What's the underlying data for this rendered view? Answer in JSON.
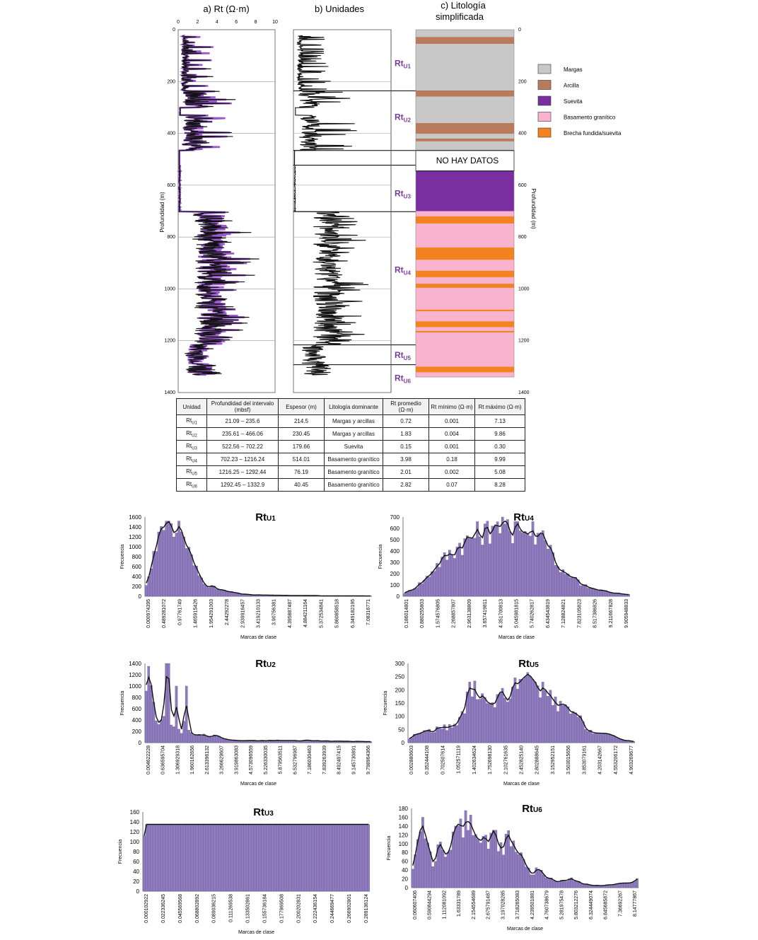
{
  "log_panel": {
    "titles": {
      "a": "a) Rt (Ω·m)",
      "b": "b) Unidades",
      "c1": "c) Litología",
      "c2": "simplificada"
    },
    "ylabel_left": "Profundidad (m)",
    "ylabel_right": "Profundidad (m)",
    "depth_ticks": [
      "0",
      "200",
      "400",
      "600",
      "800",
      "1000",
      "1200",
      "1400"
    ],
    "rt_ticks": [
      "0",
      "2",
      "4",
      "6",
      "8",
      "10"
    ],
    "unit_labels": [
      {
        "base": "Rt",
        "sub": "U1",
        "depth": 140
      },
      {
        "base": "Rt",
        "sub": "U2",
        "depth": 348
      },
      {
        "base": "Rt",
        "sub": "U3",
        "depth": 643
      },
      {
        "base": "Rt",
        "sub": "U4",
        "depth": 938
      },
      {
        "base": "Rt",
        "sub": "U5",
        "depth": 1266
      },
      {
        "base": "Rt",
        "sub": "U6",
        "depth": 1355
      }
    ],
    "unit_boundaries": [
      235.6,
      466.1,
      522.6,
      702.2,
      1216.2,
      1292.4
    ],
    "no_data_label": "NO HAY DATOS",
    "no_data_range": [
      466.1,
      545
    ],
    "lithology": [
      {
        "from": 0,
        "to": 28,
        "type": "margas"
      },
      {
        "from": 28,
        "to": 55,
        "type": "arcilla"
      },
      {
        "from": 55,
        "to": 235,
        "type": "margas"
      },
      {
        "from": 235,
        "to": 258,
        "type": "arcilla"
      },
      {
        "from": 258,
        "to": 360,
        "type": "margas"
      },
      {
        "from": 360,
        "to": 402,
        "type": "arcilla"
      },
      {
        "from": 402,
        "to": 420,
        "type": "margas"
      },
      {
        "from": 420,
        "to": 431,
        "type": "arcilla"
      },
      {
        "from": 431,
        "to": 466,
        "type": "margas"
      },
      {
        "from": 545,
        "to": 700,
        "type": "suevita"
      },
      {
        "from": 700,
        "to": 720,
        "type": "basamento"
      },
      {
        "from": 720,
        "to": 748,
        "type": "brecha"
      },
      {
        "from": 748,
        "to": 840,
        "type": "basamento"
      },
      {
        "from": 840,
        "to": 888,
        "type": "brecha"
      },
      {
        "from": 888,
        "to": 930,
        "type": "basamento"
      },
      {
        "from": 930,
        "to": 955,
        "type": "brecha"
      },
      {
        "from": 955,
        "to": 980,
        "type": "basamento"
      },
      {
        "from": 980,
        "to": 996,
        "type": "brecha"
      },
      {
        "from": 996,
        "to": 1080,
        "type": "basamento"
      },
      {
        "from": 1080,
        "to": 1087,
        "type": "brecha"
      },
      {
        "from": 1087,
        "to": 1125,
        "type": "basamento"
      },
      {
        "from": 1125,
        "to": 1148,
        "type": "brecha"
      },
      {
        "from": 1148,
        "to": 1162,
        "type": "basamento"
      },
      {
        "from": 1162,
        "to": 1168,
        "type": "brecha"
      },
      {
        "from": 1168,
        "to": 1300,
        "type": "basamento"
      },
      {
        "from": 1300,
        "to": 1322,
        "type": "brecha"
      },
      {
        "from": 1322,
        "to": 1340,
        "type": "basamento"
      }
    ],
    "legend": [
      {
        "key": "margas",
        "label": "Margas",
        "color": "#c8c8c8"
      },
      {
        "key": "arcilla",
        "label": "Arcilla",
        "color": "#b87c5c"
      },
      {
        "key": "suevita",
        "label": "Suevita",
        "color": "#7a2fa0"
      },
      {
        "key": "basamento",
        "label": "Basamento granítico",
        "color": "#f9b3cf"
      },
      {
        "key": "brecha",
        "label": "Brecha fundida/suevita",
        "color": "#f58220"
      }
    ]
  },
  "table": {
    "headers": [
      "Unidad",
      "Profundidad  del intervalo (mbsf)",
      "Espesor (m)",
      "Litología dominante",
      "Rt promedio (Ω·m)",
      "Rt mínimo (Ω·m)",
      "Rt máximo (Ω·m)"
    ],
    "rows": [
      {
        "unit": "Rt",
        "sub": "U1",
        "interval": "21.09 – 235.6",
        "thick": "214.5",
        "lith": "Margas y arcillas",
        "avg": "0.72",
        "min": "0.001",
        "max": "7.13"
      },
      {
        "unit": "Rt",
        "sub": "U2",
        "interval": "235.61 – 466.06",
        "thick": "230.45",
        "lith": "Margas y arcillas",
        "avg": "1.83",
        "min": "0.004",
        "max": "9.86"
      },
      {
        "unit": "Rt",
        "sub": "U3",
        "interval": "522.56 – 702.22",
        "thick": "179.66",
        "lith": "Suevita",
        "avg": "0.15",
        "min": "0.001",
        "max": "0.30"
      },
      {
        "unit": "Rt",
        "sub": "U4",
        "interval": "702.23 – 1216.24",
        "thick": "514.01",
        "lith": "Basamento granítico",
        "avg": "3.98",
        "min": "0.18",
        "max": "9.99"
      },
      {
        "unit": "Rt",
        "sub": "U5",
        "interval": "1216.25 – 1292.44",
        "thick": "76.19",
        "lith": "Basamento granítico",
        "avg": "2.01",
        "min": "0.002",
        "max": "5.08"
      },
      {
        "unit": "Rt",
        "sub": "U6",
        "interval": "1292.45 – 1332.9",
        "thick": "40.45",
        "lith": "Basamento granítico",
        "avg": "2.82",
        "min": "0.07",
        "max": "8.28"
      }
    ]
  },
  "chart_data": [
    {
      "type": "bar",
      "title": "Rt",
      "title_sub": "U1",
      "xlabel": "Marcas de clase",
      "ylabel": "Frecuencia",
      "ylim": [
        0,
        1600
      ],
      "yticks": [
        "0",
        "200",
        "400",
        "600",
        "800",
        "1000",
        "1200",
        "1400",
        "1600"
      ],
      "xticks": [
        "0.000974395",
        "0.489281072",
        "0.97761749",
        "1.465915426",
        "1.954291003",
        "2.44292278",
        "2.939916457",
        "3.419210133",
        "3.90756381",
        "4.395887487",
        "4.884211164",
        "5.372534841",
        "5.860858518",
        "6.349182195",
        "7.08316771"
      ],
      "profile": [
        [
          0,
          150
        ],
        [
          0.02,
          420
        ],
        [
          0.04,
          980
        ],
        [
          0.07,
          1250
        ],
        [
          0.1,
          1350
        ],
        [
          0.13,
          1420
        ],
        [
          0.16,
          1360
        ],
        [
          0.18,
          1100
        ],
        [
          0.21,
          700
        ],
        [
          0.24,
          420
        ],
        [
          0.27,
          260
        ],
        [
          0.3,
          180
        ],
        [
          0.34,
          120
        ],
        [
          0.38,
          80
        ],
        [
          0.42,
          55
        ],
        [
          0.46,
          30
        ],
        [
          0.55,
          20
        ],
        [
          0.7,
          15
        ],
        [
          0.8,
          10
        ],
        [
          1,
          5
        ]
      ],
      "spikes": [
        [
          0.06,
          1300
        ],
        [
          0.1,
          1520
        ],
        [
          0.12,
          1470
        ],
        [
          0.14,
          1280
        ],
        [
          0.16,
          1300
        ],
        [
          0.17,
          1200
        ]
      ]
    },
    {
      "type": "bar",
      "title": "Rt",
      "title_sub": "U4",
      "xlabel": "Marcas de clase",
      "ylabel": "Frecuencia",
      "ylim": [
        0,
        700
      ],
      "yticks": [
        "0",
        "100",
        "200",
        "300",
        "400",
        "500",
        "600",
        "700"
      ],
      "xticks": [
        "0.186014801",
        "0.880255803",
        "1.574576805",
        "2.268857807",
        "2.963138809",
        "3.657419811",
        "4.351700813",
        "5.045981815",
        "5.740262817",
        "6.434543819",
        "7.128824821",
        "7.823105823",
        "8.517386826",
        "9.211667828",
        "9.905948833"
      ],
      "profile": [
        [
          0,
          20
        ],
        [
          0.03,
          50
        ],
        [
          0.06,
          90
        ],
        [
          0.1,
          150
        ],
        [
          0.14,
          260
        ],
        [
          0.18,
          330
        ],
        [
          0.22,
          400
        ],
        [
          0.26,
          460
        ],
        [
          0.3,
          520
        ],
        [
          0.34,
          560
        ],
        [
          0.38,
          590
        ],
        [
          0.42,
          600
        ],
        [
          0.46,
          590
        ],
        [
          0.5,
          570
        ],
        [
          0.54,
          580
        ],
        [
          0.58,
          560
        ],
        [
          0.61,
          520
        ],
        [
          0.64,
          470
        ],
        [
          0.67,
          330
        ],
        [
          0.7,
          220
        ],
        [
          0.73,
          170
        ],
        [
          0.76,
          150
        ],
        [
          0.8,
          90
        ],
        [
          0.85,
          60
        ],
        [
          0.9,
          40
        ],
        [
          0.95,
          25
        ],
        [
          1,
          15
        ]
      ],
      "spikes": [
        [
          0.25,
          470
        ],
        [
          0.36,
          640
        ],
        [
          0.4,
          620
        ],
        [
          0.45,
          640
        ],
        [
          0.5,
          660
        ],
        [
          0.57,
          660
        ],
        [
          0.62,
          580
        ]
      ]
    },
    {
      "type": "bar",
      "title": "Rt",
      "title_sub": "U2",
      "xlabel": "Marcas de clase",
      "ylabel": "Frecuencia",
      "ylim": [
        0,
        1400
      ],
      "yticks": [
        "0",
        "200",
        "400",
        "600",
        "800",
        "1000",
        "1200",
        "1400"
      ],
      "xticks": [
        "0.004622228",
        "0.636595704",
        "1.306929318",
        "1.960162656",
        "2.613396132",
        "3.266629607",
        "3.919863083",
        "4.573096559",
        "5.226330035",
        "5.879563511",
        "6.532796987",
        "7.186030463",
        "7.839263939",
        "8.492497415",
        "9.145730891",
        "9.798964366"
      ],
      "profile": [
        [
          0,
          500
        ],
        [
          0.01,
          1050
        ],
        [
          0.02,
          1250
        ],
        [
          0.03,
          1100
        ],
        [
          0.04,
          600
        ],
        [
          0.05,
          420
        ],
        [
          0.06,
          380
        ],
        [
          0.08,
          350
        ],
        [
          0.09,
          500
        ],
        [
          0.1,
          1200
        ],
        [
          0.11,
          520
        ],
        [
          0.12,
          300
        ],
        [
          0.13,
          250
        ],
        [
          0.14,
          650
        ],
        [
          0.15,
          240
        ],
        [
          0.16,
          200
        ],
        [
          0.17,
          220
        ],
        [
          0.18,
          680
        ],
        [
          0.19,
          210
        ],
        [
          0.2,
          170
        ],
        [
          0.22,
          150
        ],
        [
          0.25,
          130
        ],
        [
          0.3,
          110
        ],
        [
          0.32,
          130
        ],
        [
          0.35,
          80
        ],
        [
          0.4,
          40
        ],
        [
          0.5,
          35
        ],
        [
          0.6,
          45
        ],
        [
          0.7,
          40
        ],
        [
          0.8,
          30
        ],
        [
          0.9,
          25
        ],
        [
          1,
          20
        ]
      ],
      "spikes": [
        [
          0.02,
          1350
        ],
        [
          0.1,
          1470
        ],
        [
          0.14,
          1000
        ],
        [
          0.18,
          1000
        ]
      ]
    },
    {
      "type": "bar",
      "title": "Rt",
      "title_sub": "U5",
      "xlabel": "Marcas de clase",
      "ylabel": "Frecuencia",
      "ylim": [
        0,
        300
      ],
      "yticks": [
        "0",
        "50",
        "100",
        "150",
        "200",
        "250",
        "300"
      ],
      "xticks": [
        "0.002880603",
        "0.352444108",
        "0.702507614",
        "1.052571119",
        "1.402634624",
        "1.752698130",
        "2.102761635",
        "2.452825140",
        "2.802888645",
        "3.152952151",
        "3.503015656",
        "3.853079161",
        "4.203142667",
        "4.553206172",
        "4.903269677"
      ],
      "profile": [
        [
          0,
          10
        ],
        [
          0.03,
          30
        ],
        [
          0.06,
          40
        ],
        [
          0.1,
          45
        ],
        [
          0.15,
          55
        ],
        [
          0.2,
          60
        ],
        [
          0.25,
          120
        ],
        [
          0.28,
          230
        ],
        [
          0.31,
          160
        ],
        [
          0.35,
          150
        ],
        [
          0.4,
          170
        ],
        [
          0.45,
          200
        ],
        [
          0.5,
          220
        ],
        [
          0.53,
          230
        ],
        [
          0.56,
          210
        ],
        [
          0.6,
          190
        ],
        [
          0.65,
          150
        ],
        [
          0.7,
          120
        ],
        [
          0.75,
          100
        ],
        [
          0.78,
          60
        ],
        [
          0.82,
          40
        ],
        [
          0.86,
          35
        ],
        [
          0.9,
          25
        ],
        [
          0.95,
          10
        ],
        [
          1,
          5
        ]
      ],
      "spikes": [
        [
          0.27,
          230
        ],
        [
          0.5,
          240
        ],
        [
          0.52,
          250
        ],
        [
          0.55,
          240
        ]
      ]
    },
    {
      "type": "bar",
      "title": "Rt",
      "title_sub": "U3",
      "xlabel": "Marcas de clase",
      "ylabel": "Frecuencia",
      "ylim": [
        0,
        160
      ],
      "yticks": [
        "0",
        "20",
        "40",
        "60",
        "80",
        "100",
        "120",
        "140",
        "160"
      ],
      "xticks": [
        "0.000102922",
        "0.022336245",
        "0.045569568",
        "0.068802892",
        "0.089036215",
        "0.111269538",
        "0.133502861",
        "0.155736184",
        "0.177969508",
        "0.200202831",
        "0.222436154",
        "0.244669477",
        "0.266902801",
        "0.289136124"
      ],
      "profile": [
        [
          0,
          60
        ],
        [
          0.008,
          135
        ],
        [
          1,
          135
        ]
      ],
      "spikes": []
    },
    {
      "type": "bar",
      "title": "Rt",
      "title_sub": "U6",
      "xlabel": "Marcas de clase",
      "ylabel": "Frecuencia",
      "ylim": [
        0,
        180
      ],
      "yticks": [
        "0",
        "20",
        "40",
        "60",
        "80",
        "100",
        "120",
        "140",
        "160",
        "180"
      ],
      "xticks": [
        "0.060607406",
        "0.590844294",
        "1.112081092",
        "1.63331789",
        "2.154554689",
        "2.675791487",
        "3.197028285",
        "3.718265083",
        "4.239501881",
        "4.760738679",
        "5.281975478",
        "5.803212276",
        "6.324449074",
        "6.845685872",
        "7.36692267",
        "8.14777867"
      ],
      "profile": [
        [
          0,
          20
        ],
        [
          0.02,
          80
        ],
        [
          0.05,
          140
        ],
        [
          0.08,
          75
        ],
        [
          0.1,
          50
        ],
        [
          0.13,
          110
        ],
        [
          0.16,
          70
        ],
        [
          0.2,
          130
        ],
        [
          0.23,
          140
        ],
        [
          0.26,
          160
        ],
        [
          0.3,
          110
        ],
        [
          0.33,
          100
        ],
        [
          0.37,
          110
        ],
        [
          0.4,
          80
        ],
        [
          0.43,
          120
        ],
        [
          0.46,
          90
        ],
        [
          0.5,
          60
        ],
        [
          0.53,
          30
        ],
        [
          0.56,
          50
        ],
        [
          0.6,
          20
        ],
        [
          0.65,
          15
        ],
        [
          0.7,
          20
        ],
        [
          0.75,
          10
        ],
        [
          0.8,
          5
        ],
        [
          0.85,
          5
        ],
        [
          0.9,
          8
        ],
        [
          0.95,
          10
        ],
        [
          1,
          20
        ]
      ],
      "spikes": [
        [
          0.05,
          160
        ],
        [
          0.2,
          140
        ],
        [
          0.26,
          165
        ],
        [
          0.43,
          130
        ]
      ]
    }
  ]
}
